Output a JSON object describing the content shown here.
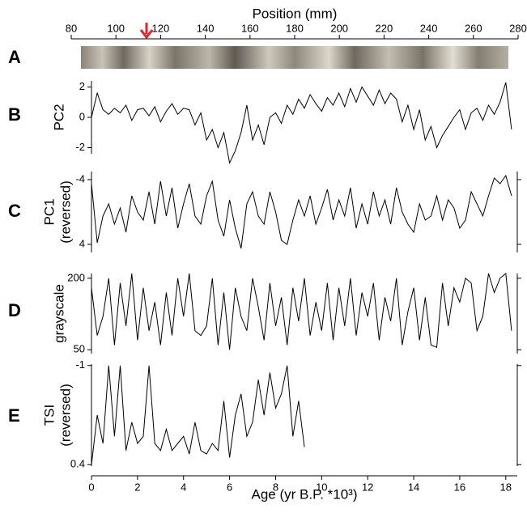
{
  "chart_data": [
    {
      "type": "strip",
      "panel": "A",
      "xlabel": "Position (mm)",
      "xlim": [
        80,
        280
      ],
      "xticks": [
        80,
        100,
        120,
        140,
        160,
        180,
        200,
        220,
        240,
        260,
        280
      ]
    },
    {
      "type": "line",
      "panel": "B",
      "ylabel": [
        "PC2"
      ],
      "ylim": [
        -2.4,
        2.4
      ],
      "yticks": [
        2,
        0,
        -2
      ],
      "right_axis": false,
      "color": "#000000",
      "x": [
        0,
        0.25,
        0.5,
        0.75,
        1,
        1.25,
        1.5,
        1.75,
        2,
        2.25,
        2.5,
        2.75,
        3,
        3.25,
        3.5,
        3.75,
        4,
        4.25,
        4.5,
        4.75,
        5,
        5.25,
        5.5,
        5.75,
        6,
        6.25,
        6.5,
        6.75,
        7,
        7.25,
        7.5,
        7.75,
        8,
        8.25,
        8.5,
        8.75,
        9,
        9.25,
        9.5,
        9.75,
        10,
        10.25,
        10.5,
        10.75,
        11,
        11.25,
        11.5,
        11.75,
        12,
        12.25,
        12.5,
        12.75,
        13,
        13.25,
        13.5,
        13.75,
        14,
        14.25,
        14.5,
        14.75,
        15,
        15.25,
        15.5,
        15.75,
        16,
        16.25,
        16.5,
        16.75,
        17,
        17.25,
        17.5,
        17.75,
        18,
        18.25
      ],
      "values": [
        0,
        1.6,
        0.5,
        0.2,
        0.6,
        0.3,
        0.8,
        -0.2,
        0.5,
        0.6,
        0.1,
        0.7,
        -0.3,
        0.4,
        0.9,
        0.2,
        0.6,
        0.5,
        -0.5,
        0.3,
        -1.5,
        -0.8,
        -2.0,
        -1.0,
        -3.0,
        -2.2,
        -1.0,
        0.8,
        -1.5,
        -0.5,
        -1.8,
        0.0,
        0.3,
        -0.4,
        0.8,
        0.2,
        1.2,
        0.6,
        1.5,
        0.9,
        0.4,
        1.3,
        0.8,
        1.6,
        0.7,
        1.9,
        1.0,
        2.0,
        1.4,
        0.8,
        1.8,
        0.9,
        1.6,
        1.2,
        -0.3,
        0.8,
        -0.8,
        0.5,
        -1.5,
        -0.6,
        -2.0,
        -1.2,
        -0.6,
        0.0,
        0.5,
        -0.8,
        0.3,
        0.6,
        -0.2,
        0.8,
        0.2,
        1.0,
        2.3,
        -0.8
      ]
    },
    {
      "type": "line",
      "panel": "C",
      "ylabel": [
        "PC1",
        "(reversed)"
      ],
      "ylim": [
        5,
        -5
      ],
      "yticks": [
        -4,
        4
      ],
      "right_axis": true,
      "color": "#000000",
      "x": [
        0,
        0.25,
        0.5,
        0.75,
        1,
        1.25,
        1.5,
        1.75,
        2,
        2.25,
        2.5,
        2.75,
        3,
        3.25,
        3.5,
        3.75,
        4,
        4.25,
        4.5,
        4.75,
        5,
        5.25,
        5.5,
        5.75,
        6,
        6.25,
        6.5,
        6.75,
        7,
        7.25,
        7.5,
        7.75,
        8,
        8.25,
        8.5,
        8.75,
        9,
        9.25,
        9.5,
        9.75,
        10,
        10.25,
        10.5,
        10.75,
        11,
        11.25,
        11.5,
        11.75,
        12,
        12.25,
        12.5,
        12.75,
        13,
        13.25,
        13.5,
        13.75,
        14,
        14.25,
        14.5,
        14.75,
        15,
        15.25,
        15.5,
        15.75,
        16,
        16.25,
        16.5,
        16.75,
        17,
        17.25,
        17.5,
        17.75,
        18,
        18.25
      ],
      "values": [
        -3.5,
        3.8,
        0.5,
        -1.0,
        1.5,
        -0.5,
        2.5,
        -2.0,
        0.0,
        1.0,
        -2.5,
        1.5,
        -3.8,
        0.5,
        -3.0,
        2.0,
        -1.0,
        -3.5,
        0.5,
        1.5,
        -2.0,
        -3.8,
        1.0,
        3.0,
        -1.5,
        2.0,
        4.5,
        -1.0,
        -2.5,
        0.5,
        1.5,
        -2.5,
        0.0,
        3.5,
        4.0,
        1.0,
        -1.5,
        0.5,
        -2.0,
        1.5,
        -0.5,
        -2.8,
        1.0,
        -1.5,
        0.5,
        -3.0,
        2.0,
        -1.0,
        1.5,
        -2.5,
        0.5,
        -1.5,
        1.5,
        -3.0,
        0.0,
        1.5,
        2.5,
        -1.0,
        1.0,
        0.5,
        -2.0,
        1.0,
        -1.5,
        -0.5,
        2.0,
        1.0,
        -2.5,
        -1.0,
        0.5,
        -2.0,
        -4.2,
        -3.5,
        -4.5,
        -2.0
      ]
    },
    {
      "type": "line",
      "panel": "D",
      "ylabel": [
        "grayscale"
      ],
      "ylim": [
        42,
        210
      ],
      "yticks": [
        200,
        50
      ],
      "right_axis": true,
      "color": "#000000",
      "x": [
        0,
        0.25,
        0.5,
        0.75,
        1,
        1.25,
        1.5,
        1.75,
        2,
        2.25,
        2.5,
        2.75,
        3,
        3.25,
        3.5,
        3.75,
        4,
        4.25,
        4.5,
        4.75,
        5,
        5.25,
        5.5,
        5.75,
        6,
        6.25,
        6.5,
        6.75,
        7,
        7.25,
        7.5,
        7.75,
        8,
        8.25,
        8.5,
        8.75,
        9,
        9.25,
        9.5,
        9.75,
        10,
        10.25,
        10.5,
        10.75,
        11,
        11.25,
        11.5,
        11.75,
        12,
        12.25,
        12.5,
        12.75,
        13,
        13.25,
        13.5,
        13.75,
        14,
        14.25,
        14.5,
        14.75,
        15,
        15.25,
        15.5,
        15.75,
        16,
        16.25,
        16.5,
        16.75,
        17,
        17.25,
        17.5,
        17.75,
        18,
        18.25
      ],
      "values": [
        180,
        80,
        120,
        200,
        60,
        190,
        100,
        210,
        70,
        180,
        90,
        150,
        60,
        170,
        80,
        200,
        120,
        210,
        90,
        80,
        100,
        200,
        60,
        170,
        50,
        180,
        120,
        90,
        200,
        140,
        70,
        190,
        100,
        160,
        60,
        180,
        110,
        200,
        80,
        150,
        90,
        190,
        70,
        180,
        100,
        200,
        80,
        170,
        120,
        190,
        70,
        160,
        110,
        200,
        60,
        130,
        180,
        70,
        160,
        60,
        55,
        190,
        100,
        180,
        150,
        200,
        190,
        90,
        120,
        210,
        170,
        200,
        210,
        90
      ]
    },
    {
      "type": "line",
      "panel": "E",
      "ylabel": [
        "TSI",
        "(reversed)"
      ],
      "ylim": [
        0.42,
        -1.02
      ],
      "yticks": [
        -1,
        0.4
      ],
      "right_axis": true,
      "color": "#000000",
      "xlabel": "Age (yr B.P. *10³)",
      "xlim": [
        0,
        18.5
      ],
      "xticks": [
        0,
        2,
        4,
        6,
        8,
        10,
        12,
        14,
        16,
        18
      ],
      "x": [
        0,
        0.25,
        0.5,
        0.75,
        1,
        1.25,
        1.5,
        1.75,
        2,
        2.25,
        2.5,
        2.75,
        3,
        3.25,
        3.5,
        3.75,
        4,
        4.25,
        4.5,
        4.75,
        5,
        5.25,
        5.5,
        5.75,
        6,
        6.25,
        6.5,
        6.75,
        7,
        7.25,
        7.5,
        7.75,
        8,
        8.25,
        8.5,
        8.75,
        9,
        9.25
      ],
      "values": [
        0.4,
        -0.3,
        0.1,
        -1.0,
        0.0,
        -1.0,
        0.2,
        -0.2,
        0.1,
        0.0,
        -1.0,
        0.1,
        0.2,
        -0.1,
        0.2,
        0.1,
        0.0,
        0.25,
        -0.2,
        0.2,
        0.25,
        0.1,
        0.2,
        -0.5,
        0.3,
        -0.3,
        -0.6,
        0.0,
        -0.2,
        -0.8,
        -0.3,
        -0.9,
        -0.4,
        -0.6,
        -1.0,
        0.0,
        -0.5,
        0.15
      ]
    }
  ]
}
